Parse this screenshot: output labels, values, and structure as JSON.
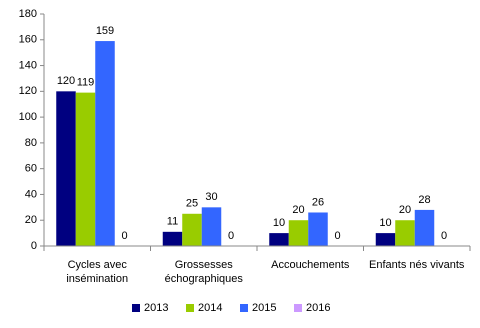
{
  "chart_data": {
    "type": "bar",
    "categories": [
      "Cycles avec insémination",
      "Grossesses échographiques",
      "Accouchements",
      "Enfants nés vivants"
    ],
    "series": [
      {
        "name": "2013",
        "color": "#000080",
        "values": [
          120,
          11,
          10,
          10
        ]
      },
      {
        "name": "2014",
        "color": "#99cc00",
        "values": [
          119,
          25,
          20,
          20
        ]
      },
      {
        "name": "2015",
        "color": "#3366ff",
        "values": [
          159,
          30,
          26,
          28
        ]
      },
      {
        "name": "2016",
        "color": "#cc99ff",
        "values": [
          0,
          0,
          0,
          0
        ]
      }
    ],
    "ylim": [
      0,
      180
    ],
    "yticks": [
      0,
      20,
      40,
      60,
      80,
      100,
      120,
      140,
      160,
      180
    ],
    "grid": false,
    "legend": "bottom"
  }
}
